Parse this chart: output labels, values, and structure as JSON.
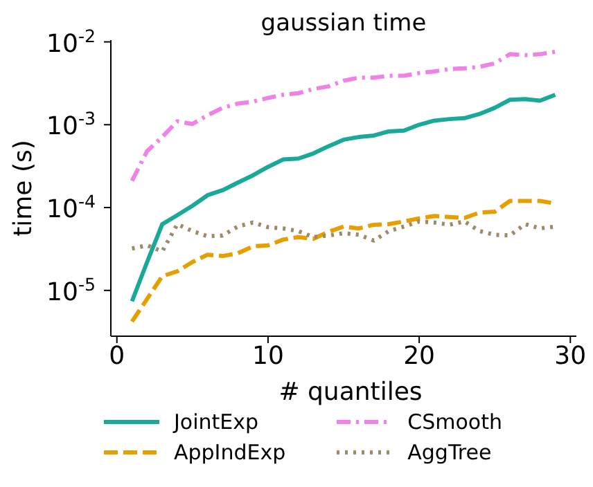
{
  "chart_data": {
    "type": "line",
    "title": "gaussian time",
    "xlabel": "# quantiles",
    "ylabel": "time (s)",
    "x": [
      1,
      2,
      3,
      4,
      5,
      6,
      7,
      8,
      9,
      10,
      11,
      12,
      13,
      14,
      15,
      16,
      17,
      18,
      19,
      20,
      21,
      22,
      23,
      24,
      25,
      26,
      27,
      28,
      29
    ],
    "log": "y",
    "grid": false,
    "legend": "bottom",
    "marker": "none",
    "xlim": [
      -0.4,
      30.4
    ],
    "xticks": [
      0,
      10,
      20,
      30
    ],
    "ylim": [
      2.8e-06,
      0.0105
    ],
    "yticks": [
      {
        "value": 1e-05,
        "label": "10$^{-5}$"
      },
      {
        "value": 0.0001,
        "label": "10$^{-4}$"
      },
      {
        "value": 0.001,
        "label": "10$^{-3}$"
      },
      {
        "value": 0.01,
        "label": "10$^{-2}$"
      }
    ],
    "series": [
      {
        "name": "JointExp",
        "color": "#1aa899",
        "line_style": "solid",
        "values": [
          7.4e-06,
          2.2e-05,
          6.3e-05,
          8.1e-05,
          0.000105,
          0.000141,
          0.000162,
          0.0002,
          0.000245,
          0.00031,
          0.00038,
          0.00039,
          0.00045,
          0.00055,
          0.00066,
          0.00071,
          0.00074,
          0.00083,
          0.00085,
          0.001,
          0.00112,
          0.00117,
          0.0012,
          0.00135,
          0.0016,
          0.002,
          0.00204,
          0.00195,
          0.0023
        ]
      },
      {
        "name": "AppIndExp",
        "color": "#e69f00",
        "line_style": "dashed",
        "values": [
          4.2e-06,
          7.9e-06,
          1.48e-05,
          1.7e-05,
          2.2e-05,
          2.7e-05,
          2.6e-05,
          2.8e-05,
          3.4e-05,
          3.5e-05,
          4.1e-05,
          4.4e-05,
          4.2e-05,
          5.1e-05,
          5.9e-05,
          5.6e-05,
          6.2e-05,
          6.3e-05,
          6.8e-05,
          7.4e-05,
          7.9e-05,
          7.7e-05,
          7.5e-05,
          8.7e-05,
          8.9e-05,
          0.00012,
          0.00012,
          0.00012,
          0.000112
        ]
      },
      {
        "name": "CSmooth",
        "color": "#ee82e6",
        "line_style": "dashdot",
        "values": [
          0.00021,
          0.00048,
          0.00071,
          0.0011,
          0.00102,
          0.0013,
          0.0016,
          0.0018,
          0.0019,
          0.0021,
          0.0023,
          0.0024,
          0.0027,
          0.0029,
          0.0034,
          0.0037,
          0.0037,
          0.0039,
          0.0039,
          0.0042,
          0.0044,
          0.0047,
          0.0048,
          0.005,
          0.0055,
          0.0071,
          0.0069,
          0.0071,
          0.0076
        ]
      },
      {
        "name": "AggTree",
        "color": "#9c8a6a",
        "line_style": "dotted",
        "values": [
          3.2e-05,
          3.5e-05,
          2.95e-05,
          6.3e-05,
          5.2e-05,
          4.5e-05,
          4.6e-05,
          5.9e-05,
          6.6e-05,
          5.8e-05,
          5.6e-05,
          5.2e-05,
          4.4e-05,
          4.6e-05,
          4.9e-05,
          4.7e-05,
          4e-05,
          5.2e-05,
          5.9e-05,
          6.8e-05,
          6.6e-05,
          6.2e-05,
          6.8e-05,
          5.2e-05,
          4.7e-05,
          4.6e-05,
          6.3e-05,
          5.6e-05,
          5.9e-05
        ]
      }
    ]
  }
}
